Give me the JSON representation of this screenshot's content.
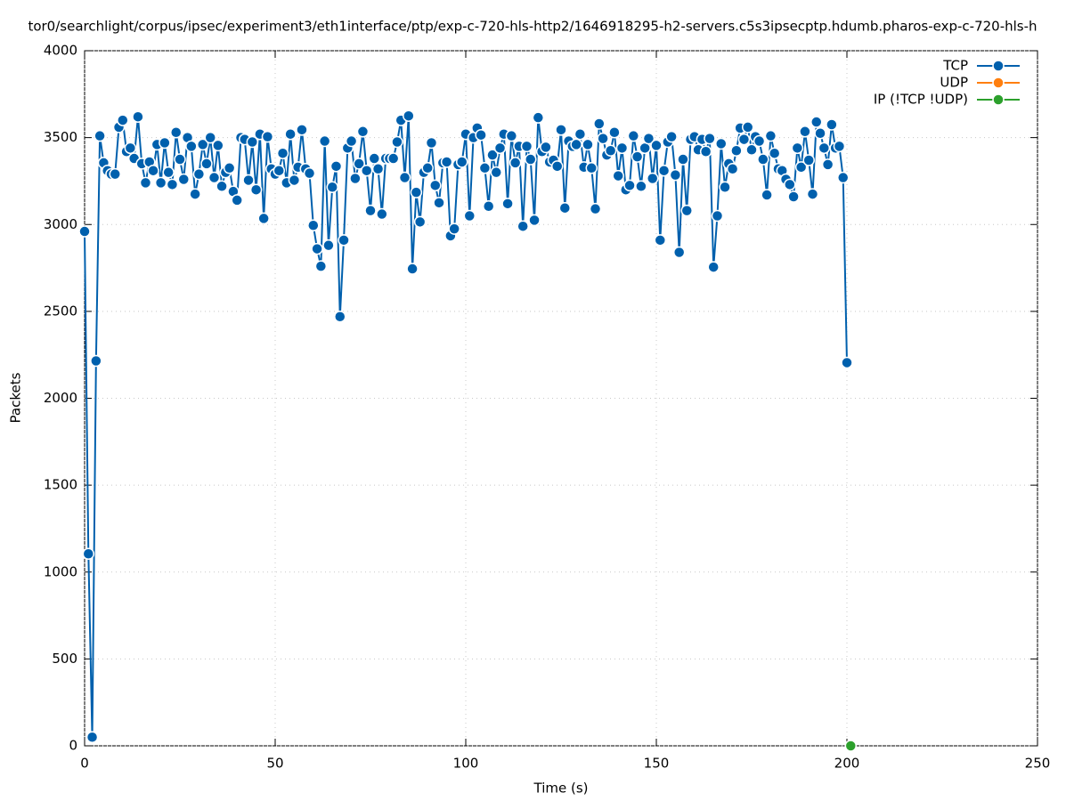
{
  "chart_data": {
    "type": "line",
    "title": "tor0/searchlight/corpus/ipsec/experiment3/eth1interface/ptp/exp-c-720-hls-http2/1646918295-h2-servers.c5s3ipsecptp.hdumb.pharos-exp-c-720-hls-h",
    "xlabel": "Time (s)",
    "ylabel": "Packets",
    "xlim": [
      0,
      250
    ],
    "xticks": [
      0,
      50,
      100,
      150,
      200,
      250
    ],
    "ylim": [
      0,
      4000
    ],
    "yticks": [
      0,
      500,
      1000,
      1500,
      2000,
      2500,
      3000,
      3500,
      4000
    ],
    "grid": true,
    "legend": "top-right",
    "series": [
      {
        "name": "TCP",
        "color": "#0060ad",
        "x": [
          0,
          1,
          2,
          3,
          4,
          5,
          6,
          7,
          8,
          9,
          10,
          11,
          12,
          13,
          14,
          15,
          16,
          17,
          18,
          19,
          20,
          21,
          22,
          23,
          24,
          25,
          26,
          27,
          28,
          29,
          30,
          31,
          32,
          33,
          34,
          35,
          36,
          37,
          38,
          39,
          40,
          41,
          42,
          43,
          44,
          45,
          46,
          47,
          48,
          49,
          50,
          51,
          52,
          53,
          54,
          55,
          56,
          57,
          58,
          59,
          60,
          61,
          62,
          63,
          64,
          65,
          66,
          67,
          68,
          69,
          70,
          71,
          72,
          73,
          74,
          75,
          76,
          77,
          78,
          79,
          80,
          81,
          82,
          83,
          84,
          85,
          86,
          87,
          88,
          89,
          90,
          91,
          92,
          93,
          94,
          95,
          96,
          97,
          98,
          99,
          100,
          101,
          102,
          103,
          104,
          105,
          106,
          107,
          108,
          109,
          110,
          111,
          112,
          113,
          114,
          115,
          116,
          117,
          118,
          119,
          120,
          121,
          122,
          123,
          124,
          125,
          126,
          127,
          128,
          129,
          130,
          131,
          132,
          133,
          134,
          135,
          136,
          137,
          138,
          139,
          140,
          141,
          142,
          143,
          144,
          145,
          146,
          147,
          148,
          149,
          150,
          151,
          152,
          153,
          154,
          155,
          156,
          157,
          158,
          159,
          160,
          161,
          162,
          163,
          164,
          165,
          166,
          167,
          168,
          169,
          170,
          171,
          172,
          173,
          174,
          175,
          176,
          177,
          178,
          179,
          180,
          181,
          182,
          183,
          184,
          185,
          186,
          187,
          188,
          189,
          190,
          191,
          192,
          193,
          194,
          195,
          196,
          197,
          198,
          199,
          200
        ],
        "values": [
          2960,
          1105,
          50,
          2215,
          3510,
          3355,
          3310,
          3290,
          3290,
          3560,
          3600,
          3420,
          3440,
          3380,
          3620,
          3350,
          3240,
          3360,
          3310,
          3460,
          3240,
          3470,
          3300,
          3230,
          3530,
          3375,
          3260,
          3500,
          3450,
          3175,
          3290,
          3460,
          3350,
          3500,
          3270,
          3455,
          3220,
          3300,
          3325,
          3190,
          3140,
          3500,
          3490,
          3255,
          3475,
          3200,
          3520,
          3035,
          3505,
          3320,
          3290,
          3310,
          3410,
          3240,
          3520,
          3255,
          3330,
          3545,
          3320,
          3295,
          2995,
          2860,
          2760,
          3480,
          2880,
          3215,
          3335,
          2470,
          2910,
          3440,
          3480,
          3265,
          3350,
          3535,
          3310,
          3080,
          3380,
          3320,
          3060,
          3380,
          3380,
          3380,
          3475,
          3600,
          3270,
          3625,
          2745,
          3185,
          3015,
          3300,
          3325,
          3470,
          3225,
          3125,
          3355,
          3360,
          2935,
          2975,
          3345,
          3360,
          3520,
          3050,
          3500,
          3555,
          3515,
          3325,
          3105,
          3400,
          3300,
          3440,
          3520,
          3120,
          3510,
          3355,
          3450,
          2990,
          3450,
          3375,
          3025,
          3615,
          3420,
          3445,
          3360,
          3370,
          3335,
          3545,
          3095,
          3480,
          3450,
          3460,
          3520,
          3330,
          3460,
          3325,
          3090,
          3580,
          3495,
          3400,
          3425,
          3530,
          3280,
          3440,
          3200,
          3225,
          3510,
          3390,
          3220,
          3440,
          3495,
          3265,
          3455,
          2910,
          3310,
          3475,
          3505,
          3285,
          2840,
          3375,
          3080,
          3490,
          3505,
          3430,
          3490,
          3420,
          3495,
          2755,
          3050,
          3465,
          3215,
          3350,
          3320,
          3425,
          3555,
          3490,
          3560,
          3430,
          3505,
          3480,
          3375,
          3170,
          3510,
          3410,
          3320,
          3310,
          3260,
          3230,
          3160,
          3440,
          3330,
          3535,
          3370,
          3175,
          3590,
          3525,
          3440,
          3345,
          3575,
          3440,
          3450,
          3270,
          2205
        ]
      },
      {
        "name": "UDP",
        "color": "#ff7f0e",
        "x": [],
        "values": []
      },
      {
        "name": "IP (!TCP  !UDP)",
        "color": "#2ca02c",
        "x": [
          201
        ],
        "values": [
          0
        ]
      }
    ]
  }
}
